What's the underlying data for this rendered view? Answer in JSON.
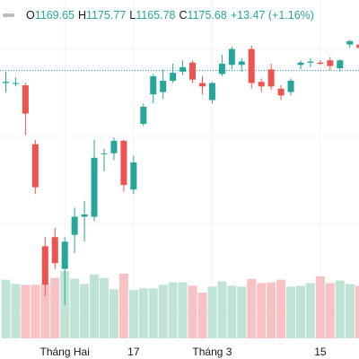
{
  "legend": {
    "open_label": "O",
    "open": "1169.65",
    "high_label": "H",
    "high": "1175.77",
    "low_label": "L",
    "low": "1165.78",
    "close_label": "C",
    "close": "1175.68",
    "change": "+13.47 (+1.16%)"
  },
  "colors": {
    "up": "#26a69a",
    "down": "#ef5350",
    "up_volume": "#bfe4d6",
    "down_volume": "#f8c1c4",
    "grid": "#f0f3fa",
    "price_line": "#26a69a"
  },
  "chart_data": {
    "type": "candlestick",
    "title": "",
    "xlabel": "",
    "ylabel": "",
    "grid": true,
    "x_tick_labels": [
      {
        "label": "Tháng Hai",
        "index": 6
      },
      {
        "label": "17",
        "index": 13
      },
      {
        "label": "Tháng 3",
        "index": 21
      },
      {
        "label": "15",
        "index": 32
      }
    ],
    "last_price_line": 1165.5,
    "candles": [
      {
        "o": 1160.0,
        "h": 1165.0,
        "l": 1156.0,
        "c": 1160.5,
        "v": 0.68
      },
      {
        "o": 1160.0,
        "h": 1162.5,
        "l": 1158.5,
        "c": 1160.0,
        "v": 0.63
      },
      {
        "o": 1159.0,
        "h": 1160.0,
        "l": 1137.0,
        "c": 1146.5,
        "v": 0.62
      },
      {
        "o": 1133.0,
        "h": 1135.0,
        "l": 1111.0,
        "c": 1114.0,
        "v": 0.62
      },
      {
        "o": 1088.0,
        "h": 1092.0,
        "l": 1066.0,
        "c": 1071.0,
        "v": 0.63
      },
      {
        "o": 1092.0,
        "h": 1096.0,
        "l": 1078.0,
        "c": 1080.5,
        "v": 0.7
      },
      {
        "o": 1078.0,
        "h": 1092.0,
        "l": 1062.0,
        "c": 1090.0,
        "v": 0.78
      },
      {
        "o": 1093.0,
        "h": 1105.0,
        "l": 1085.0,
        "c": 1101.0,
        "v": 0.69
      },
      {
        "o": 1101.0,
        "h": 1108.0,
        "l": 1090.0,
        "c": 1102.0,
        "v": 0.63
      },
      {
        "o": 1101.0,
        "h": 1135.0,
        "l": 1099.0,
        "c": 1127.0,
        "v": 0.74
      },
      {
        "o": 1129.0,
        "h": 1131.0,
        "l": 1121.0,
        "c": 1129.0,
        "v": 0.7
      },
      {
        "o": 1129.0,
        "h": 1136.0,
        "l": 1126.0,
        "c": 1134.5,
        "v": 0.57
      },
      {
        "o": 1134.5,
        "h": 1135.0,
        "l": 1112.0,
        "c": 1115.0,
        "v": 0.75
      },
      {
        "o": 1113.0,
        "h": 1128.0,
        "l": 1111.0,
        "c": 1125.0,
        "v": 0.56
      },
      {
        "o": 1142.0,
        "h": 1151.0,
        "l": 1141.0,
        "c": 1149.5,
        "v": 0.58
      },
      {
        "o": 1155.0,
        "h": 1164.0,
        "l": 1151.0,
        "c": 1163.0,
        "v": 0.58
      },
      {
        "o": 1156.0,
        "h": 1166.0,
        "l": 1153.0,
        "c": 1161.0,
        "v": 0.62
      },
      {
        "o": 1161.0,
        "h": 1168.5,
        "l": 1160.0,
        "c": 1164.5,
        "v": 0.65
      },
      {
        "o": 1165.0,
        "h": 1170.0,
        "l": 1163.5,
        "c": 1167.0,
        "v": 0.65
      },
      {
        "o": 1169.0,
        "h": 1170.0,
        "l": 1160.0,
        "c": 1161.5,
        "v": 0.61
      },
      {
        "o": 1160.0,
        "h": 1163.0,
        "l": 1155.0,
        "c": 1158.5,
        "v": 0.53
      },
      {
        "o": 1152.5,
        "h": 1160.5,
        "l": 1151.0,
        "c": 1160.0,
        "v": 0.6
      },
      {
        "o": 1164.0,
        "h": 1172.5,
        "l": 1163.0,
        "c": 1168.5,
        "v": 0.66
      },
      {
        "o": 1168.0,
        "h": 1176.0,
        "l": 1166.0,
        "c": 1175.0,
        "v": 0.61
      },
      {
        "o": 1168.0,
        "h": 1171.0,
        "l": 1165.0,
        "c": 1169.5,
        "v": 0.6
      },
      {
        "o": 1175.0,
        "h": 1176.5,
        "l": 1157.5,
        "c": 1160.0,
        "v": 0.69
      },
      {
        "o": 1160.5,
        "h": 1162.0,
        "l": 1156.0,
        "c": 1158.5,
        "v": 0.64
      },
      {
        "o": 1166.0,
        "h": 1168.5,
        "l": 1157.0,
        "c": 1158.5,
        "v": 0.65
      },
      {
        "o": 1157.5,
        "h": 1159.0,
        "l": 1152.5,
        "c": 1154.5,
        "v": 0.68
      },
      {
        "o": 1156.0,
        "h": 1162.0,
        "l": 1154.5,
        "c": 1161.0,
        "v": 0.6
      },
      {
        "o": 1168.0,
        "h": 1170.0,
        "l": 1166.0,
        "c": 1169.0,
        "v": 0.61
      },
      {
        "o": 1169.0,
        "h": 1171.0,
        "l": 1167.0,
        "c": 1169.5,
        "v": 0.64
      },
      {
        "o": 1169.0,
        "h": 1170.0,
        "l": 1168.0,
        "c": 1168.5,
        "v": 0.72
      },
      {
        "o": 1170.0,
        "h": 1171.5,
        "l": 1165.5,
        "c": 1167.5,
        "v": 0.64
      },
      {
        "o": 1166.5,
        "h": 1170.5,
        "l": 1165.0,
        "c": 1170.0,
        "v": 0.67
      },
      {
        "o": 1177.0,
        "h": 1179.0,
        "l": 1175.5,
        "c": 1178.5,
        "v": 0.63
      },
      {
        "o": 1177.0,
        "h": 1181.0,
        "l": 1175.0,
        "c": 1175.5,
        "v": 0.61
      }
    ]
  }
}
